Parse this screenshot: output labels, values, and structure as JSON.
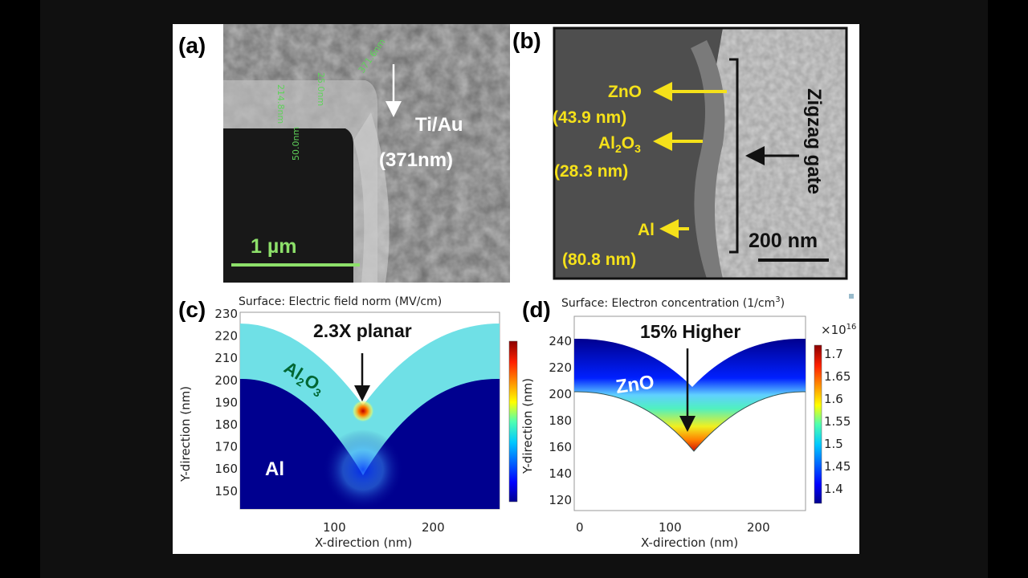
{
  "panels": {
    "a": {
      "label": "(a)",
      "scale_bar": "1 µm",
      "material": "Ti/Au",
      "thickness": "(371nm)",
      "measurements": [
        "371.6nm",
        "25.0nm",
        "50.0nm",
        "214.8nm"
      ]
    },
    "b": {
      "label": "(b)",
      "layers": [
        {
          "name": "ZnO",
          "thickness": "(43.9 nm)"
        },
        {
          "name_main": "Al",
          "name_sub": "2",
          "name_tail": "O",
          "name_sub2": "3",
          "thickness": "(28.3 nm)"
        },
        {
          "name": "Al",
          "thickness": "(80.8 nm)"
        }
      ],
      "gate_label": "Zigzag gate",
      "scale_bar": "200 nm"
    },
    "c": {
      "label": "(c)",
      "title": "Surface: Electric field norm (MV/cm)",
      "annotation": "2.3X planar",
      "region_oxide": {
        "main": "Al",
        "sub": "2",
        "tail": "O",
        "sub2": "3"
      },
      "region_metal": "Al",
      "xlabel": "X-direction (nm)",
      "ylabel": "Y-direction (nm)",
      "colorbar_label": "Y-direction (nm)",
      "xticks": [
        "100",
        "200"
      ],
      "yticks": [
        "230",
        "220",
        "210",
        "200",
        "190",
        "180",
        "170",
        "160",
        "150"
      ]
    },
    "d": {
      "label": "(d)",
      "title": "Surface: Electron concentration (1/cm",
      "title_sup": "3",
      "title_end": ")",
      "annotation": "15% Higher",
      "region": "ZnO",
      "xlabel": "X-direction (nm)",
      "xticks": [
        "0",
        "100",
        "200"
      ],
      "yticks": [
        "240",
        "220",
        "200",
        "180",
        "160",
        "140",
        "120"
      ],
      "colorbar_multiplier": "×10",
      "colorbar_exp": "16",
      "colorbar_ticks": [
        "1.7",
        "1.65",
        "1.6",
        "1.55",
        "1.5",
        "1.45",
        "1.4"
      ]
    }
  },
  "colors": {
    "background": "#101010",
    "figure": "#ffffff",
    "highlight_yellow": "#f5e11a",
    "measure_green": "#5fd35a",
    "jet_low": "#00008f",
    "jet_high": "#8b0000"
  }
}
